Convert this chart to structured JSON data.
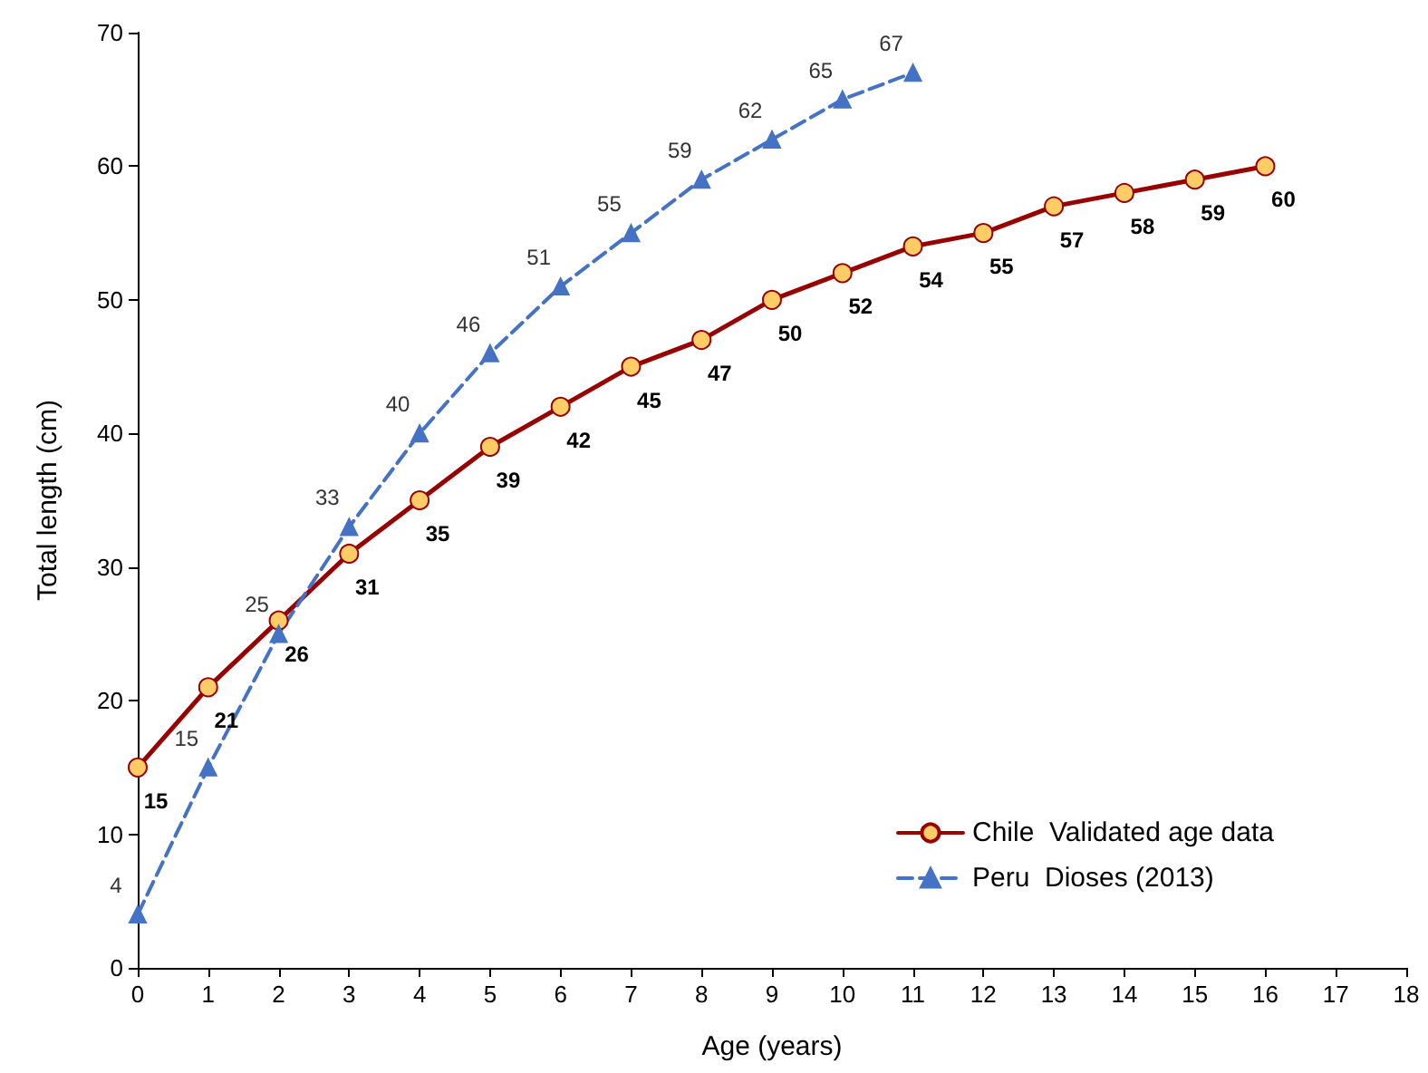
{
  "chart_data": {
    "type": "line",
    "xlabel": "Age (years)",
    "ylabel": "Total length (cm)",
    "xlim": [
      0,
      18
    ],
    "xticks": [
      0,
      1,
      2,
      3,
      4,
      5,
      6,
      7,
      8,
      9,
      10,
      11,
      12,
      13,
      14,
      15,
      16,
      17,
      18
    ],
    "ylim": [
      0,
      70
    ],
    "yticks": [
      0,
      10,
      20,
      30,
      40,
      50,
      60,
      70
    ],
    "grid": false,
    "legend": "bottom right",
    "data_labels": true,
    "series": [
      {
        "name": "Chile  Validated age data",
        "color": "#990000",
        "marker": "circle",
        "line_style": "solid",
        "x": [
          0,
          1,
          2,
          3,
          4,
          5,
          6,
          7,
          8,
          9,
          10,
          11,
          12,
          13,
          14,
          15,
          16
        ],
        "values": [
          15,
          21,
          26,
          31,
          35,
          39,
          42,
          45,
          47,
          50,
          52,
          54,
          55,
          57,
          58,
          59,
          60
        ]
      },
      {
        "name": "Peru  Dioses (2013)",
        "color": "#4472c4",
        "marker": "triangle",
        "line_style": "dashed",
        "x": [
          0,
          1,
          2,
          3,
          4,
          5,
          6,
          7,
          8,
          9,
          10,
          11
        ],
        "values": [
          4,
          15,
          25,
          33,
          40,
          46,
          51,
          55,
          59,
          62,
          65,
          67
        ]
      }
    ]
  }
}
